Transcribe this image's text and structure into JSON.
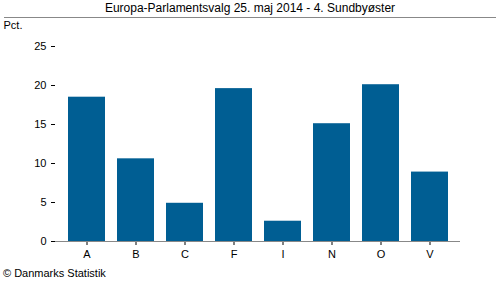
{
  "chart_data": {
    "type": "bar",
    "title": "Europa-Parlamentsvalg 25. maj 2014 - 4. Sundbyøster",
    "y_label": "Pct.",
    "caption": "© Danmarks Statistik",
    "categories": [
      "A",
      "B",
      "C",
      "F",
      "I",
      "N",
      "O",
      "V"
    ],
    "values": [
      18.5,
      10.6,
      4.9,
      19.6,
      2.6,
      15.1,
      20.1,
      8.9
    ],
    "color": "#005e93",
    "ylim": [
      0,
      25
    ],
    "yticks": [
      0,
      5,
      10,
      15,
      20,
      25
    ],
    "grid": false
  }
}
